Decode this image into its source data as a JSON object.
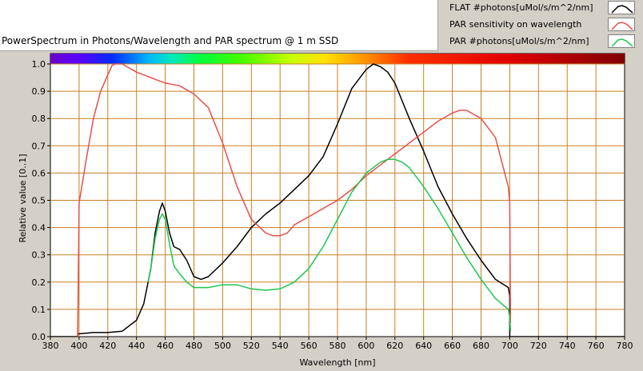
{
  "title": "PowerSpectrum in Photons/Wavelength and PAR spectrum @ 1 m SSD",
  "legend": {
    "items": [
      {
        "label": "FLAT #photons[uMol/s/m^2/nm]",
        "color": "#000000"
      },
      {
        "label": "PAR sensitivity on wavelength",
        "color": "#e8504a"
      },
      {
        "label": "PAR #photons[uMol/s/m^2/nm]",
        "color": "#1ec850"
      }
    ]
  },
  "colors": {
    "plot_background": "#ffffff",
    "grid": "#c8801e",
    "frame": "#000000"
  },
  "chart_data": {
    "type": "line",
    "title": "PowerSpectrum in Photons/Wavelength and PAR spectrum @ 1 m SSD",
    "xlabel": "Wavelength [nm]",
    "ylabel": "Relative value [0..1]",
    "xlim": [
      380,
      780
    ],
    "ylim": [
      0,
      1.02
    ],
    "x_ticks": [
      "380",
      "400",
      "420",
      "440",
      "460",
      "480",
      "500",
      "520",
      "540",
      "560",
      "580",
      "600",
      "620",
      "640",
      "660",
      "680",
      "700",
      "720",
      "740",
      "760",
      "780"
    ],
    "y_ticks": [
      "0.0",
      "0.1",
      "0.2",
      "0.3",
      "0.4",
      "0.5",
      "0.6",
      "0.7",
      "0.8",
      "0.9",
      "1.0"
    ],
    "grid": true,
    "legend_position": "top-right",
    "spectrum_bar": true,
    "series": [
      {
        "name": "FLAT #photons[uMol/s/m^2/nm]",
        "x": [
          380,
          399,
          399,
          410,
          420,
          430,
          440,
          445,
          450,
          453,
          456,
          458,
          460,
          463,
          466,
          470,
          475,
          480,
          485,
          490,
          500,
          510,
          520,
          530,
          540,
          550,
          560,
          570,
          580,
          590,
          600,
          605,
          610,
          615,
          620,
          630,
          640,
          650,
          660,
          670,
          680,
          690,
          699,
          700,
          700,
          780
        ],
        "y": [
          0,
          0,
          0.01,
          0.015,
          0.015,
          0.02,
          0.06,
          0.12,
          0.25,
          0.38,
          0.46,
          0.49,
          0.46,
          0.38,
          0.33,
          0.32,
          0.28,
          0.22,
          0.21,
          0.22,
          0.27,
          0.33,
          0.4,
          0.45,
          0.49,
          0.54,
          0.59,
          0.66,
          0.78,
          0.91,
          0.98,
          1.0,
          0.99,
          0.97,
          0.93,
          0.8,
          0.68,
          0.55,
          0.45,
          0.36,
          0.28,
          0.21,
          0.18,
          0.15,
          0,
          0
        ]
      },
      {
        "name": "PAR sensitivity on wavelength",
        "x": [
          399,
          399.5,
          400,
          405,
          410,
          415,
          420,
          423,
          425,
          430,
          440,
          450,
          460,
          470,
          480,
          490,
          500,
          510,
          520,
          530,
          535,
          540,
          545,
          550,
          560,
          570,
          580,
          590,
          600,
          610,
          620,
          630,
          640,
          650,
          660,
          665,
          670,
          680,
          690,
          695,
          699,
          700,
          700.5
        ],
        "y": [
          0,
          0.25,
          0.49,
          0.65,
          0.8,
          0.9,
          0.96,
          0.995,
          1.0,
          1.0,
          0.97,
          0.95,
          0.93,
          0.92,
          0.89,
          0.84,
          0.71,
          0.55,
          0.43,
          0.38,
          0.37,
          0.37,
          0.38,
          0.41,
          0.44,
          0.47,
          0.5,
          0.54,
          0.59,
          0.63,
          0.67,
          0.71,
          0.75,
          0.79,
          0.82,
          0.83,
          0.83,
          0.8,
          0.73,
          0.63,
          0.55,
          0.49,
          0.05
        ]
      },
      {
        "name": "PAR #photons[uMol/s/m^2/nm]",
        "x": [
          448,
          450,
          453,
          456,
          458,
          460,
          463,
          466,
          470,
          475,
          480,
          490,
          500,
          510,
          520,
          530,
          540,
          550,
          560,
          570,
          580,
          590,
          600,
          610,
          615,
          620,
          625,
          630,
          640,
          650,
          660,
          670,
          680,
          690,
          699,
          700,
          700.5
        ],
        "y": [
          0.2,
          0.25,
          0.36,
          0.43,
          0.45,
          0.43,
          0.34,
          0.26,
          0.23,
          0.2,
          0.18,
          0.18,
          0.19,
          0.19,
          0.175,
          0.17,
          0.175,
          0.2,
          0.25,
          0.33,
          0.43,
          0.53,
          0.6,
          0.64,
          0.65,
          0.65,
          0.64,
          0.62,
          0.55,
          0.47,
          0.38,
          0.29,
          0.21,
          0.14,
          0.1,
          0.07,
          0.02
        ]
      }
    ]
  }
}
